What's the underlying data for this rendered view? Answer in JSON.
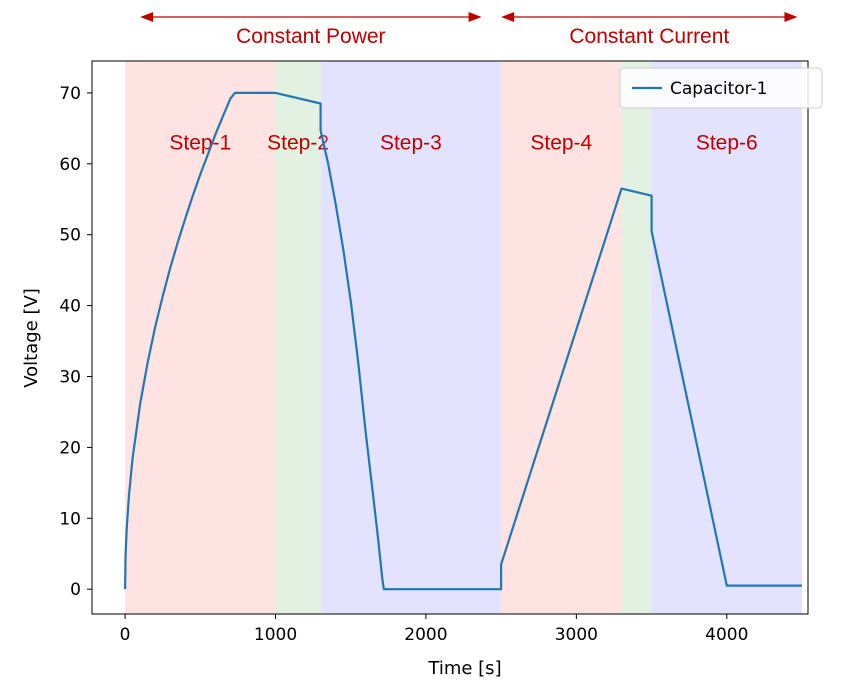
{
  "chart_data": {
    "type": "line",
    "xlabel": "Time [s]",
    "ylabel": "Voltage [V]",
    "xlim": [
      -220,
      4540
    ],
    "ylim": [
      -3.5,
      74.5
    ],
    "xticks": [
      0,
      1000,
      2000,
      3000,
      4000
    ],
    "yticks": [
      0,
      10,
      20,
      30,
      40,
      50,
      60,
      70
    ],
    "grid": false,
    "legend": {
      "position": "top-right",
      "entries": [
        "Capacitor-1"
      ]
    },
    "colors": {
      "line": "#1f77b4",
      "red_region": "#ff9999",
      "green_region": "#99cc99",
      "blue_region": "#9999ff",
      "annotation": "#C00000"
    },
    "regions": [
      {
        "label": "Step-1",
        "x0": 0,
        "x1": 1000,
        "color": "red"
      },
      {
        "label": "Step-2",
        "x0": 1000,
        "x1": 1300,
        "color": "green"
      },
      {
        "label": "Step-3",
        "x0": 1300,
        "x1": 2500,
        "color": "blue"
      },
      {
        "label": "Step-4",
        "x0": 2500,
        "x1": 3300,
        "color": "red"
      },
      {
        "label": "",
        "x0": 3300,
        "x1": 3500,
        "color": "green"
      },
      {
        "label": "Step-6",
        "x0": 3500,
        "x1": 4500,
        "color": "blue"
      }
    ],
    "phases": [
      {
        "label": "Constant Power",
        "x0": 100,
        "x1": 2370
      },
      {
        "label": "Constant Current",
        "x0": 2500,
        "x1": 4470
      }
    ],
    "series": [
      {
        "name": "Capacitor-1",
        "x": [
          0,
          3,
          10,
          25,
          50,
          100,
          150,
          200,
          250,
          300,
          350,
          400,
          450,
          500,
          550,
          600,
          650,
          700,
          730,
          1000,
          1300,
          1300,
          1350,
          1400,
          1450,
          1500,
          1550,
          1600,
          1650,
          1680,
          1700,
          1710,
          1720,
          2500,
          2500,
          3300,
          3500,
          3500,
          4000,
          4500
        ],
        "y": [
          0,
          4.5,
          8.3,
          13.1,
          18.5,
          26.1,
          32.0,
          37.0,
          41.3,
          45.3,
          48.9,
          52.3,
          55.5,
          58.5,
          61.3,
          64.1,
          66.7,
          69.2,
          70.0,
          70.0,
          68.5,
          64.7,
          60.0,
          54.3,
          48.0,
          40.7,
          32.0,
          22.0,
          13.0,
          7.5,
          3.5,
          1.5,
          0,
          0,
          3.5,
          56.5,
          55.5,
          50.5,
          0.5,
          0.5
        ]
      }
    ]
  }
}
